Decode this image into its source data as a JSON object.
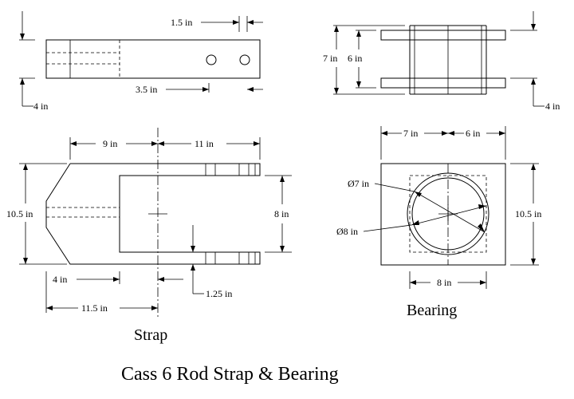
{
  "title": "Cass 6 Rod Strap & Bearing",
  "labels": {
    "strap": "Strap",
    "bearing": "Bearing"
  },
  "dims": {
    "top_strap_hole_spacing": "1.5 in",
    "top_strap_height": "4 in",
    "top_strap_hole_offset": "3.5 in",
    "top_bearing_outer": "7 in",
    "top_bearing_inner": "6 in",
    "top_bearing_height": "4 in",
    "strap_left_width": "9 in",
    "strap_right_width": "11 in",
    "strap_height": "10.5 in",
    "strap_slot_height": "8 in",
    "strap_taper": "4 in",
    "strap_overall_left": "11.5 in",
    "strap_slot_offset": "1.25 in",
    "bearing_left": "7 in",
    "bearing_right": "6 in",
    "bearing_bore_small": "Ø7 in",
    "bearing_bore_large": "Ø8 in",
    "bearing_height": "10.5 in",
    "bearing_bottom": "8 in"
  }
}
